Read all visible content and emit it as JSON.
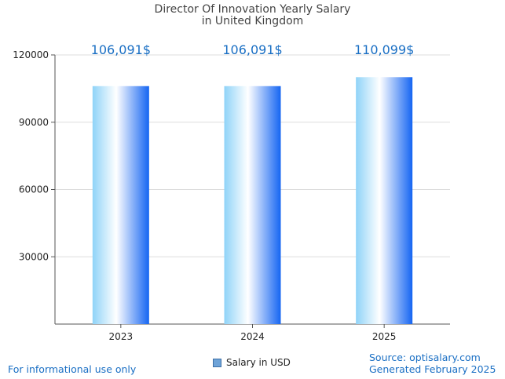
{
  "chart_data": {
    "type": "bar",
    "title": "Director Of Innovation Yearly Salary",
    "subtitle": "in United Kingdom",
    "categories": [
      "2023",
      "2024",
      "2025"
    ],
    "series": [
      {
        "name": "Salary in USD",
        "values": [
          106091,
          106091,
          110099
        ]
      }
    ],
    "data_labels": [
      "106,091$",
      "106,091$",
      "110,099$"
    ],
    "yticks": [
      30000,
      60000,
      90000,
      120000
    ],
    "ylim": [
      0,
      120000
    ],
    "grid": true,
    "legend": "bottom-center"
  },
  "footer": {
    "left": "For informational use only",
    "source": "Source: optisalary.com",
    "generated": "Generated February 2025"
  },
  "colors": {
    "label_blue": "#1a6fc4",
    "bar_light": "#8fd3f8",
    "bar_dark": "#1565f2",
    "grid": "#dddddd"
  }
}
